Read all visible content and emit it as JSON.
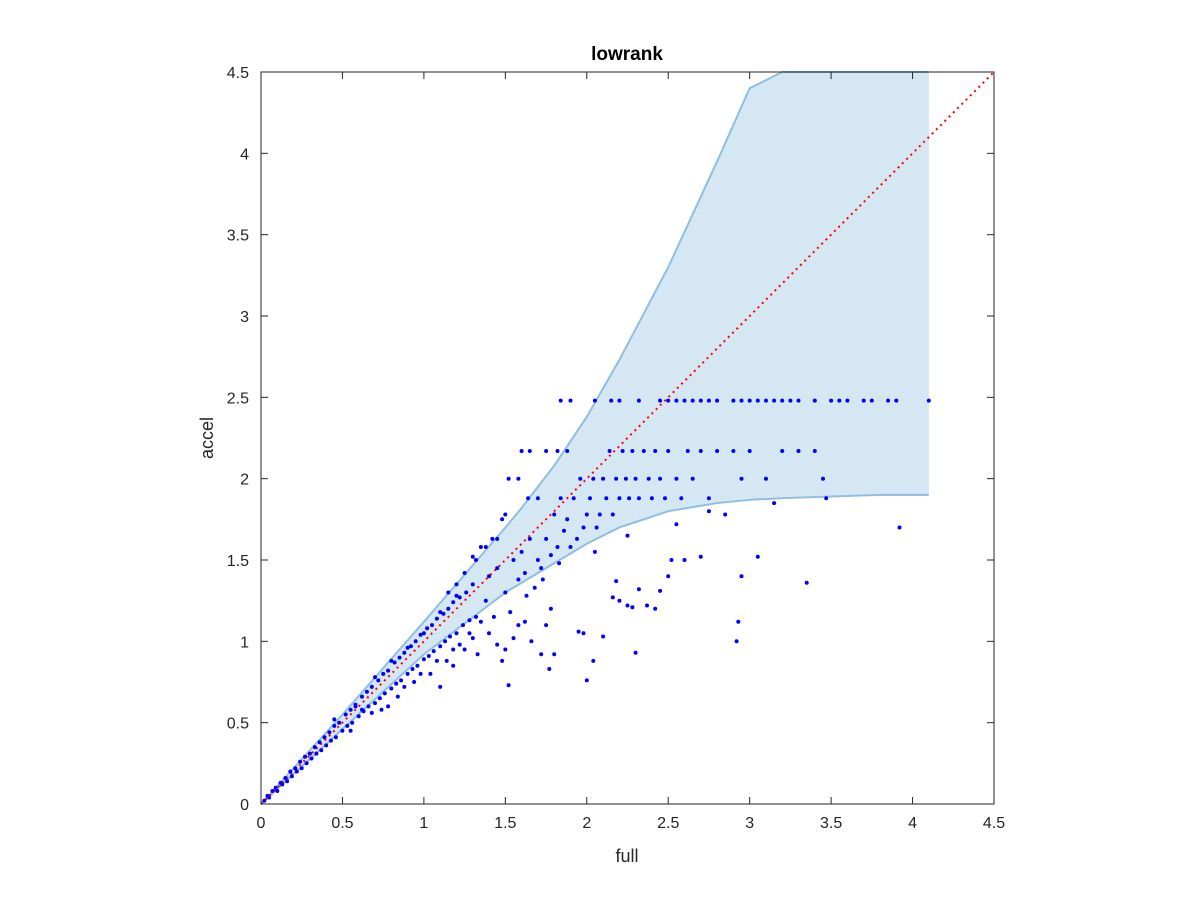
{
  "chart_data": {
    "type": "scatter",
    "title": "lowrank",
    "xlabel": "full",
    "ylabel": "accel",
    "xlim": [
      0,
      4.5
    ],
    "ylim": [
      0,
      4.5
    ],
    "xticks": [
      "0",
      "0.5",
      "1",
      "1.5",
      "2",
      "2.5",
      "3",
      "3.5",
      "4",
      "4.5"
    ],
    "yticks": [
      "0",
      "0.5",
      "1",
      "1.5",
      "2",
      "2.5",
      "3",
      "3.5",
      "4",
      "4.5"
    ],
    "grid": false,
    "box": true,
    "reference_line": {
      "style": "dotted",
      "color": "#ff0000",
      "x": [
        0,
        4.5
      ],
      "y": [
        0,
        4.5
      ]
    },
    "band": {
      "color": "#d5e7f3",
      "edge_color": "#8fbfe0",
      "x": [
        0,
        0.5,
        1.0,
        1.5,
        1.6,
        1.8,
        2.0,
        2.2,
        2.5,
        2.8,
        3.0,
        3.2,
        3.5,
        3.8,
        4.1
      ],
      "upper": [
        0,
        0.55,
        1.12,
        1.7,
        1.82,
        2.08,
        2.38,
        2.73,
        3.3,
        3.95,
        4.4,
        4.5,
        4.5,
        4.5,
        4.5
      ],
      "lower": [
        0,
        0.46,
        0.92,
        1.3,
        1.36,
        1.48,
        1.6,
        1.7,
        1.8,
        1.85,
        1.87,
        1.88,
        1.89,
        1.9,
        1.9
      ]
    },
    "marker_color": "#0000ff",
    "series": [
      {
        "points": [
          [
            0.02,
            0.02
          ],
          [
            0.04,
            0.05
          ],
          [
            0.05,
            0.04
          ],
          [
            0.07,
            0.08
          ],
          [
            0.09,
            0.1
          ],
          [
            0.1,
            0.08
          ],
          [
            0.12,
            0.13
          ],
          [
            0.13,
            0.12
          ],
          [
            0.15,
            0.16
          ],
          [
            0.16,
            0.14
          ],
          [
            0.18,
            0.2
          ],
          [
            0.19,
            0.17
          ],
          [
            0.21,
            0.22
          ],
          [
            0.22,
            0.2
          ],
          [
            0.24,
            0.26
          ],
          [
            0.25,
            0.22
          ],
          [
            0.27,
            0.29
          ],
          [
            0.28,
            0.25
          ],
          [
            0.3,
            0.31
          ],
          [
            0.31,
            0.28
          ],
          [
            0.33,
            0.35
          ],
          [
            0.34,
            0.31
          ],
          [
            0.36,
            0.38
          ],
          [
            0.37,
            0.33
          ],
          [
            0.39,
            0.41
          ],
          [
            0.4,
            0.36
          ],
          [
            0.42,
            0.44
          ],
          [
            0.43,
            0.39
          ],
          [
            0.45,
            0.48
          ],
          [
            0.46,
            0.41
          ],
          [
            0.48,
            0.5
          ],
          [
            0.5,
            0.45
          ],
          [
            0.52,
            0.55
          ],
          [
            0.53,
            0.48
          ],
          [
            0.55,
            0.58
          ],
          [
            0.56,
            0.5
          ],
          [
            0.58,
            0.61
          ],
          [
            0.6,
            0.54
          ],
          [
            0.62,
            0.66
          ],
          [
            0.63,
            0.57
          ],
          [
            0.65,
            0.69
          ],
          [
            0.66,
            0.6
          ],
          [
            0.68,
            0.72
          ],
          [
            0.7,
            0.62
          ],
          [
            0.72,
            0.76
          ],
          [
            0.73,
            0.65
          ],
          [
            0.75,
            0.8
          ],
          [
            0.76,
            0.68
          ],
          [
            0.78,
            0.82
          ],
          [
            0.8,
            0.71
          ],
          [
            0.82,
            0.87
          ],
          [
            0.83,
            0.74
          ],
          [
            0.85,
            0.9
          ],
          [
            0.86,
            0.76
          ],
          [
            0.88,
            0.93
          ],
          [
            0.9,
            0.8
          ],
          [
            0.92,
            0.97
          ],
          [
            0.93,
            0.83
          ],
          [
            0.95,
            1.0
          ],
          [
            0.96,
            0.85
          ],
          [
            0.98,
            1.04
          ],
          [
            1.0,
            0.89
          ],
          [
            1.02,
            1.08
          ],
          [
            1.03,
            0.91
          ],
          [
            1.05,
            1.1
          ],
          [
            1.06,
            0.94
          ],
          [
            1.08,
            1.14
          ],
          [
            1.1,
            0.97
          ],
          [
            1.12,
            1.17
          ],
          [
            1.13,
            1.0
          ],
          [
            1.15,
            1.2
          ],
          [
            1.16,
            1.03
          ],
          [
            1.18,
            1.24
          ],
          [
            1.2,
            1.05
          ],
          [
            1.22,
            1.27
          ],
          [
            1.24,
            1.1
          ],
          [
            1.26,
            1.3
          ],
          [
            1.28,
            1.13
          ],
          [
            1.3,
            1.35
          ],
          [
            1.32,
            1.15
          ],
          [
            0.45,
            0.52
          ],
          [
            0.55,
            0.45
          ],
          [
            0.62,
            0.58
          ],
          [
            0.7,
            0.78
          ],
          [
            0.74,
            0.58
          ],
          [
            0.8,
            0.88
          ],
          [
            0.84,
            0.66
          ],
          [
            0.9,
            0.96
          ],
          [
            0.94,
            0.75
          ],
          [
            1.0,
            1.05
          ],
          [
            1.04,
            0.8
          ],
          [
            1.1,
            1.18
          ],
          [
            1.14,
            0.88
          ],
          [
            1.2,
            1.28
          ],
          [
            1.25,
            0.95
          ],
          [
            1.1,
            0.72
          ],
          [
            1.18,
            0.85
          ],
          [
            1.22,
            0.98
          ],
          [
            1.3,
            1.02
          ],
          [
            1.35,
            1.12
          ],
          [
            1.38,
            1.25
          ],
          [
            1.4,
            1.05
          ],
          [
            1.45,
            0.98
          ],
          [
            1.48,
            0.88
          ],
          [
            1.5,
            0.95
          ],
          [
            1.52,
            0.73
          ],
          [
            1.55,
            1.02
          ],
          [
            1.58,
            1.1
          ],
          [
            1.62,
            1.12
          ],
          [
            1.66,
            1.0
          ],
          [
            1.75,
            1.1
          ],
          [
            1.78,
            1.2
          ],
          [
            1.8,
            0.92
          ],
          [
            1.72,
            0.92
          ],
          [
            1.77,
            0.83
          ],
          [
            1.95,
            1.06
          ],
          [
            1.98,
            1.05
          ],
          [
            2.0,
            0.76
          ],
          [
            2.04,
            0.88
          ],
          [
            2.1,
            1.03
          ],
          [
            2.18,
            1.37
          ],
          [
            2.16,
            1.27
          ],
          [
            2.2,
            1.25
          ],
          [
            2.25,
            1.22
          ],
          [
            2.28,
            1.21
          ],
          [
            2.3,
            0.93
          ],
          [
            2.32,
            1.32
          ],
          [
            2.37,
            1.22
          ],
          [
            2.42,
            1.2
          ],
          [
            2.45,
            1.31
          ],
          [
            2.5,
            1.4
          ],
          [
            2.52,
            1.5
          ],
          [
            2.6,
            1.5
          ],
          [
            2.7,
            1.52
          ],
          [
            2.92,
            1.0
          ],
          [
            2.93,
            1.12
          ],
          [
            2.95,
            1.4
          ],
          [
            3.05,
            1.52
          ],
          [
            3.35,
            1.36
          ],
          [
            3.92,
            1.7
          ],
          [
            3.47,
            1.88
          ],
          [
            1.32,
            1.5
          ],
          [
            1.35,
            1.58
          ],
          [
            1.4,
            1.4
          ],
          [
            1.42,
            1.63
          ],
          [
            1.45,
            1.45
          ],
          [
            1.48,
            1.75
          ],
          [
            1.5,
            1.3
          ],
          [
            1.55,
            1.5
          ],
          [
            1.58,
            1.38
          ],
          [
            1.6,
            1.55
          ],
          [
            1.62,
            1.42
          ],
          [
            1.65,
            1.63
          ],
          [
            1.68,
            1.33
          ],
          [
            1.7,
            1.5
          ],
          [
            1.72,
            1.45
          ],
          [
            1.75,
            1.63
          ],
          [
            1.78,
            1.53
          ],
          [
            1.8,
            1.78
          ],
          [
            1.82,
            1.58
          ],
          [
            1.84,
            1.88
          ],
          [
            1.86,
            1.68
          ],
          [
            1.88,
            1.75
          ],
          [
            1.9,
            1.58
          ],
          [
            1.92,
            1.88
          ],
          [
            1.94,
            1.63
          ],
          [
            1.96,
            2.0
          ],
          [
            1.98,
            1.7
          ],
          [
            2.0,
            1.78
          ],
          [
            2.02,
            1.88
          ],
          [
            2.04,
            2.0
          ],
          [
            2.06,
            1.7
          ],
          [
            2.08,
            1.78
          ],
          [
            2.1,
            2.0
          ],
          [
            2.12,
            1.88
          ],
          [
            2.14,
            2.17
          ],
          [
            2.16,
            1.78
          ],
          [
            2.18,
            2.0
          ],
          [
            2.2,
            1.88
          ],
          [
            2.22,
            2.17
          ],
          [
            2.24,
            2.0
          ],
          [
            2.26,
            1.88
          ],
          [
            2.28,
            2.17
          ],
          [
            2.3,
            2.0
          ],
          [
            2.32,
            1.88
          ],
          [
            2.35,
            2.17
          ],
          [
            2.38,
            2.0
          ],
          [
            2.4,
            1.88
          ],
          [
            2.42,
            2.17
          ],
          [
            2.45,
            2.0
          ],
          [
            2.48,
            1.88
          ],
          [
            2.5,
            2.17
          ],
          [
            2.55,
            2.0
          ],
          [
            2.58,
            1.88
          ],
          [
            2.62,
            2.17
          ],
          [
            2.65,
            2.0
          ],
          [
            2.7,
            2.17
          ],
          [
            2.75,
            1.88
          ],
          [
            2.8,
            2.17
          ],
          [
            2.85,
            1.78
          ],
          [
            2.9,
            2.17
          ],
          [
            2.95,
            2.0
          ],
          [
            3.0,
            2.17
          ],
          [
            3.1,
            2.0
          ],
          [
            3.2,
            2.17
          ],
          [
            3.3,
            2.17
          ],
          [
            3.4,
            2.17
          ],
          [
            3.45,
            2.0
          ],
          [
            1.84,
            2.48
          ],
          [
            1.9,
            2.48
          ],
          [
            2.05,
            2.48
          ],
          [
            2.15,
            2.48
          ],
          [
            2.2,
            2.48
          ],
          [
            2.32,
            2.48
          ],
          [
            2.45,
            2.48
          ],
          [
            2.5,
            2.48
          ],
          [
            2.55,
            2.48
          ],
          [
            2.6,
            2.48
          ],
          [
            2.65,
            2.48
          ],
          [
            2.7,
            2.48
          ],
          [
            2.75,
            2.48
          ],
          [
            2.8,
            2.48
          ],
          [
            2.9,
            2.48
          ],
          [
            2.95,
            2.48
          ],
          [
            3.0,
            2.48
          ],
          [
            3.05,
            2.48
          ],
          [
            3.1,
            2.48
          ],
          [
            3.15,
            2.48
          ],
          [
            3.2,
            2.48
          ],
          [
            3.25,
            2.48
          ],
          [
            3.3,
            2.48
          ],
          [
            3.4,
            2.48
          ],
          [
            3.5,
            2.48
          ],
          [
            3.55,
            2.48
          ],
          [
            3.6,
            2.48
          ],
          [
            3.7,
            2.48
          ],
          [
            3.75,
            2.48
          ],
          [
            3.85,
            2.48
          ],
          [
            3.9,
            2.48
          ],
          [
            4.1,
            2.48
          ],
          [
            1.6,
            2.17
          ],
          [
            1.65,
            2.17
          ],
          [
            1.75,
            2.17
          ],
          [
            1.82,
            2.17
          ],
          [
            1.88,
            2.17
          ],
          [
            1.52,
            2.0
          ],
          [
            1.58,
            2.0
          ],
          [
            1.64,
            1.88
          ],
          [
            1.7,
            1.88
          ],
          [
            1.5,
            1.78
          ],
          [
            1.45,
            1.63
          ],
          [
            1.38,
            1.58
          ],
          [
            1.3,
            1.52
          ],
          [
            1.25,
            1.42
          ],
          [
            1.2,
            1.35
          ],
          [
            1.15,
            1.3
          ],
          [
            0.58,
            0.6
          ],
          [
            0.68,
            0.56
          ],
          [
            0.88,
            0.72
          ],
          [
            0.78,
            0.6
          ],
          [
            0.98,
            0.8
          ],
          [
            1.08,
            0.88
          ],
          [
            1.18,
            0.95
          ],
          [
            1.28,
            1.05
          ],
          [
            1.33,
            0.92
          ],
          [
            1.43,
            1.15
          ],
          [
            1.53,
            1.18
          ],
          [
            1.63,
            1.28
          ],
          [
            1.73,
            1.38
          ],
          [
            1.83,
            1.48
          ],
          [
            2.05,
            1.55
          ],
          [
            2.25,
            1.65
          ],
          [
            2.55,
            1.72
          ],
          [
            2.75,
            1.8
          ],
          [
            3.15,
            1.85
          ]
        ]
      }
    ]
  }
}
